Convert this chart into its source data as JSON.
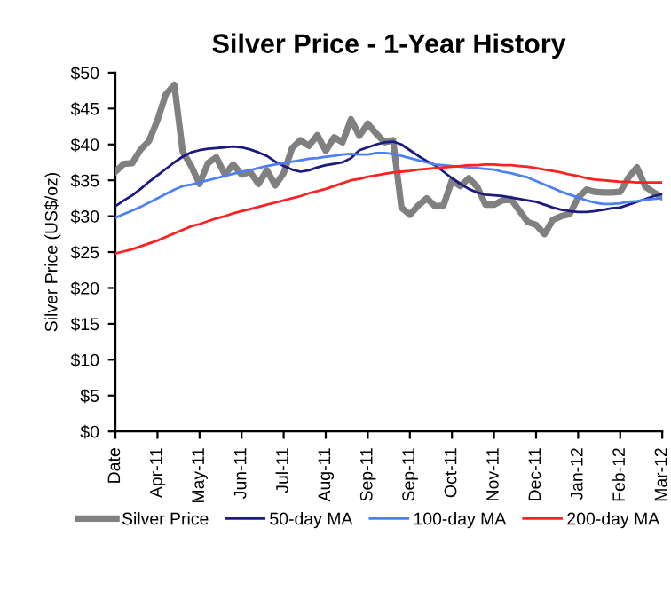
{
  "chart_data": {
    "type": "line",
    "title": "Silver Price - 1-Year History",
    "ylabel": "Silver Price (US$/oz)",
    "categories": [
      "Date",
      null,
      null,
      null,
      null,
      "Apr-11",
      null,
      null,
      null,
      null,
      "May-11",
      null,
      null,
      null,
      null,
      "Jun-11",
      null,
      null,
      null,
      null,
      "Jul-11",
      null,
      null,
      null,
      null,
      "Aug-11",
      null,
      null,
      null,
      null,
      "Sep-11",
      null,
      null,
      null,
      null,
      "Sep-11",
      null,
      null,
      null,
      null,
      "Oct-11",
      null,
      null,
      null,
      null,
      "Nov-11",
      null,
      null,
      null,
      null,
      "Dec-11",
      null,
      null,
      null,
      null,
      "Jan-12",
      null,
      null,
      null,
      null,
      "Feb-12",
      null,
      null,
      null,
      null,
      "Mar-12"
    ],
    "series": [
      {
        "name": "Silver Price",
        "color": "#808080",
        "values": [
          36.2,
          37.3,
          37.4,
          39.3,
          40.5,
          43.4,
          47,
          48.3,
          39,
          37,
          34.5,
          37.4,
          38.2,
          35.8,
          37.2,
          35.8,
          36.2,
          34.5,
          36.4,
          34.3,
          36,
          39.5,
          40.6,
          39.8,
          41.3,
          39.1,
          41,
          40.3,
          43.5,
          41.2,
          42.9,
          41.5,
          40.3,
          40.6,
          31.2,
          30.2,
          31.5,
          32.5,
          31.4,
          31.5,
          35,
          34.2,
          35.3,
          34.1,
          31.6,
          31.6,
          32.2,
          32.4,
          30.8,
          29.2,
          28.8,
          27.5,
          29.5,
          30,
          30.3,
          32.6,
          33.7,
          33.4,
          33.3,
          33.3,
          33.4,
          35.4,
          36.8,
          34.1,
          33.3,
          32.6
        ]
      },
      {
        "name": "50-day MA",
        "color": "#1a1a80",
        "values": [
          31.4,
          32.2,
          32.9,
          33.8,
          34.8,
          35.7,
          36.6,
          37.5,
          38.3,
          38.9,
          39.2,
          39.4,
          39.5,
          39.6,
          39.7,
          39.6,
          39.3,
          38.9,
          38.4,
          37.6,
          37,
          36.5,
          36.2,
          36.4,
          36.8,
          37.1,
          37.3,
          37.5,
          38.1,
          39.2,
          39.6,
          40,
          40.3,
          40.4,
          40,
          39.2,
          38.4,
          37.7,
          37.1,
          36.2,
          35.3,
          34.5,
          33.8,
          33.3,
          33,
          32.9,
          32.8,
          32.6,
          32.4,
          32.2,
          32,
          31.6,
          31.2,
          30.9,
          30.7,
          30.6,
          30.6,
          30.7,
          30.9,
          31.1,
          31.2,
          31.6,
          32,
          32.4,
          32.8,
          33.1
        ]
      },
      {
        "name": "100-day MA",
        "color": "#4d7ff5",
        "values": [
          29.8,
          30.3,
          30.8,
          31.3,
          31.9,
          32.5,
          33.1,
          33.7,
          34.2,
          34.4,
          34.7,
          35,
          35.3,
          35.6,
          35.9,
          36.2,
          36.4,
          36.7,
          37,
          37.2,
          37.4,
          37.6,
          37.8,
          38,
          38.1,
          38.3,
          38.4,
          38.6,
          38.7,
          38.6,
          38.6,
          38.8,
          38.8,
          38.7,
          38.4,
          38.1,
          37.8,
          37.5,
          37.2,
          37.1,
          37,
          36.9,
          36.8,
          36.7,
          36.6,
          36.5,
          36.2,
          36,
          35.7,
          35.4,
          34.9,
          34.4,
          33.9,
          33.4,
          33,
          32.6,
          32.2,
          31.9,
          31.7,
          31.7,
          31.8,
          32,
          32.1,
          32.3,
          32.4,
          32.5
        ]
      },
      {
        "name": "200-day MA",
        "color": "#ff2020",
        "values": [
          24.8,
          25.1,
          25.4,
          25.8,
          26.2,
          26.6,
          27.1,
          27.6,
          28.1,
          28.6,
          28.9,
          29.3,
          29.7,
          30,
          30.4,
          30.7,
          31,
          31.3,
          31.6,
          31.9,
          32.2,
          32.5,
          32.8,
          33.2,
          33.5,
          33.8,
          34.2,
          34.6,
          35,
          35.2,
          35.5,
          35.7,
          35.9,
          36.1,
          36.2,
          36.3,
          36.5,
          36.6,
          36.7,
          36.8,
          36.9,
          37,
          37.1,
          37.1,
          37.2,
          37.2,
          37.1,
          37.1,
          37,
          36.9,
          36.7,
          36.5,
          36.3,
          36.1,
          35.8,
          35.6,
          35.3,
          35.1,
          35,
          34.9,
          34.8,
          34.8,
          34.7,
          34.7,
          34.7,
          34.7
        ]
      }
    ],
    "ylim": [
      0,
      50
    ],
    "yticks": [
      {
        "value": 0,
        "label": "$0"
      },
      {
        "value": 5,
        "label": "$5"
      },
      {
        "value": 10,
        "label": "$10"
      },
      {
        "value": 15,
        "label": "$15"
      },
      {
        "value": 20,
        "label": "$20"
      },
      {
        "value": 25,
        "label": "$25"
      },
      {
        "value": 30,
        "label": "$30"
      },
      {
        "value": 35,
        "label": "$35"
      },
      {
        "value": 40,
        "label": "$40"
      },
      {
        "value": 45,
        "label": "$45"
      },
      {
        "value": 50,
        "label": "$50"
      }
    ],
    "legend": "bottom",
    "marker": "none",
    "line_style": "solid"
  }
}
